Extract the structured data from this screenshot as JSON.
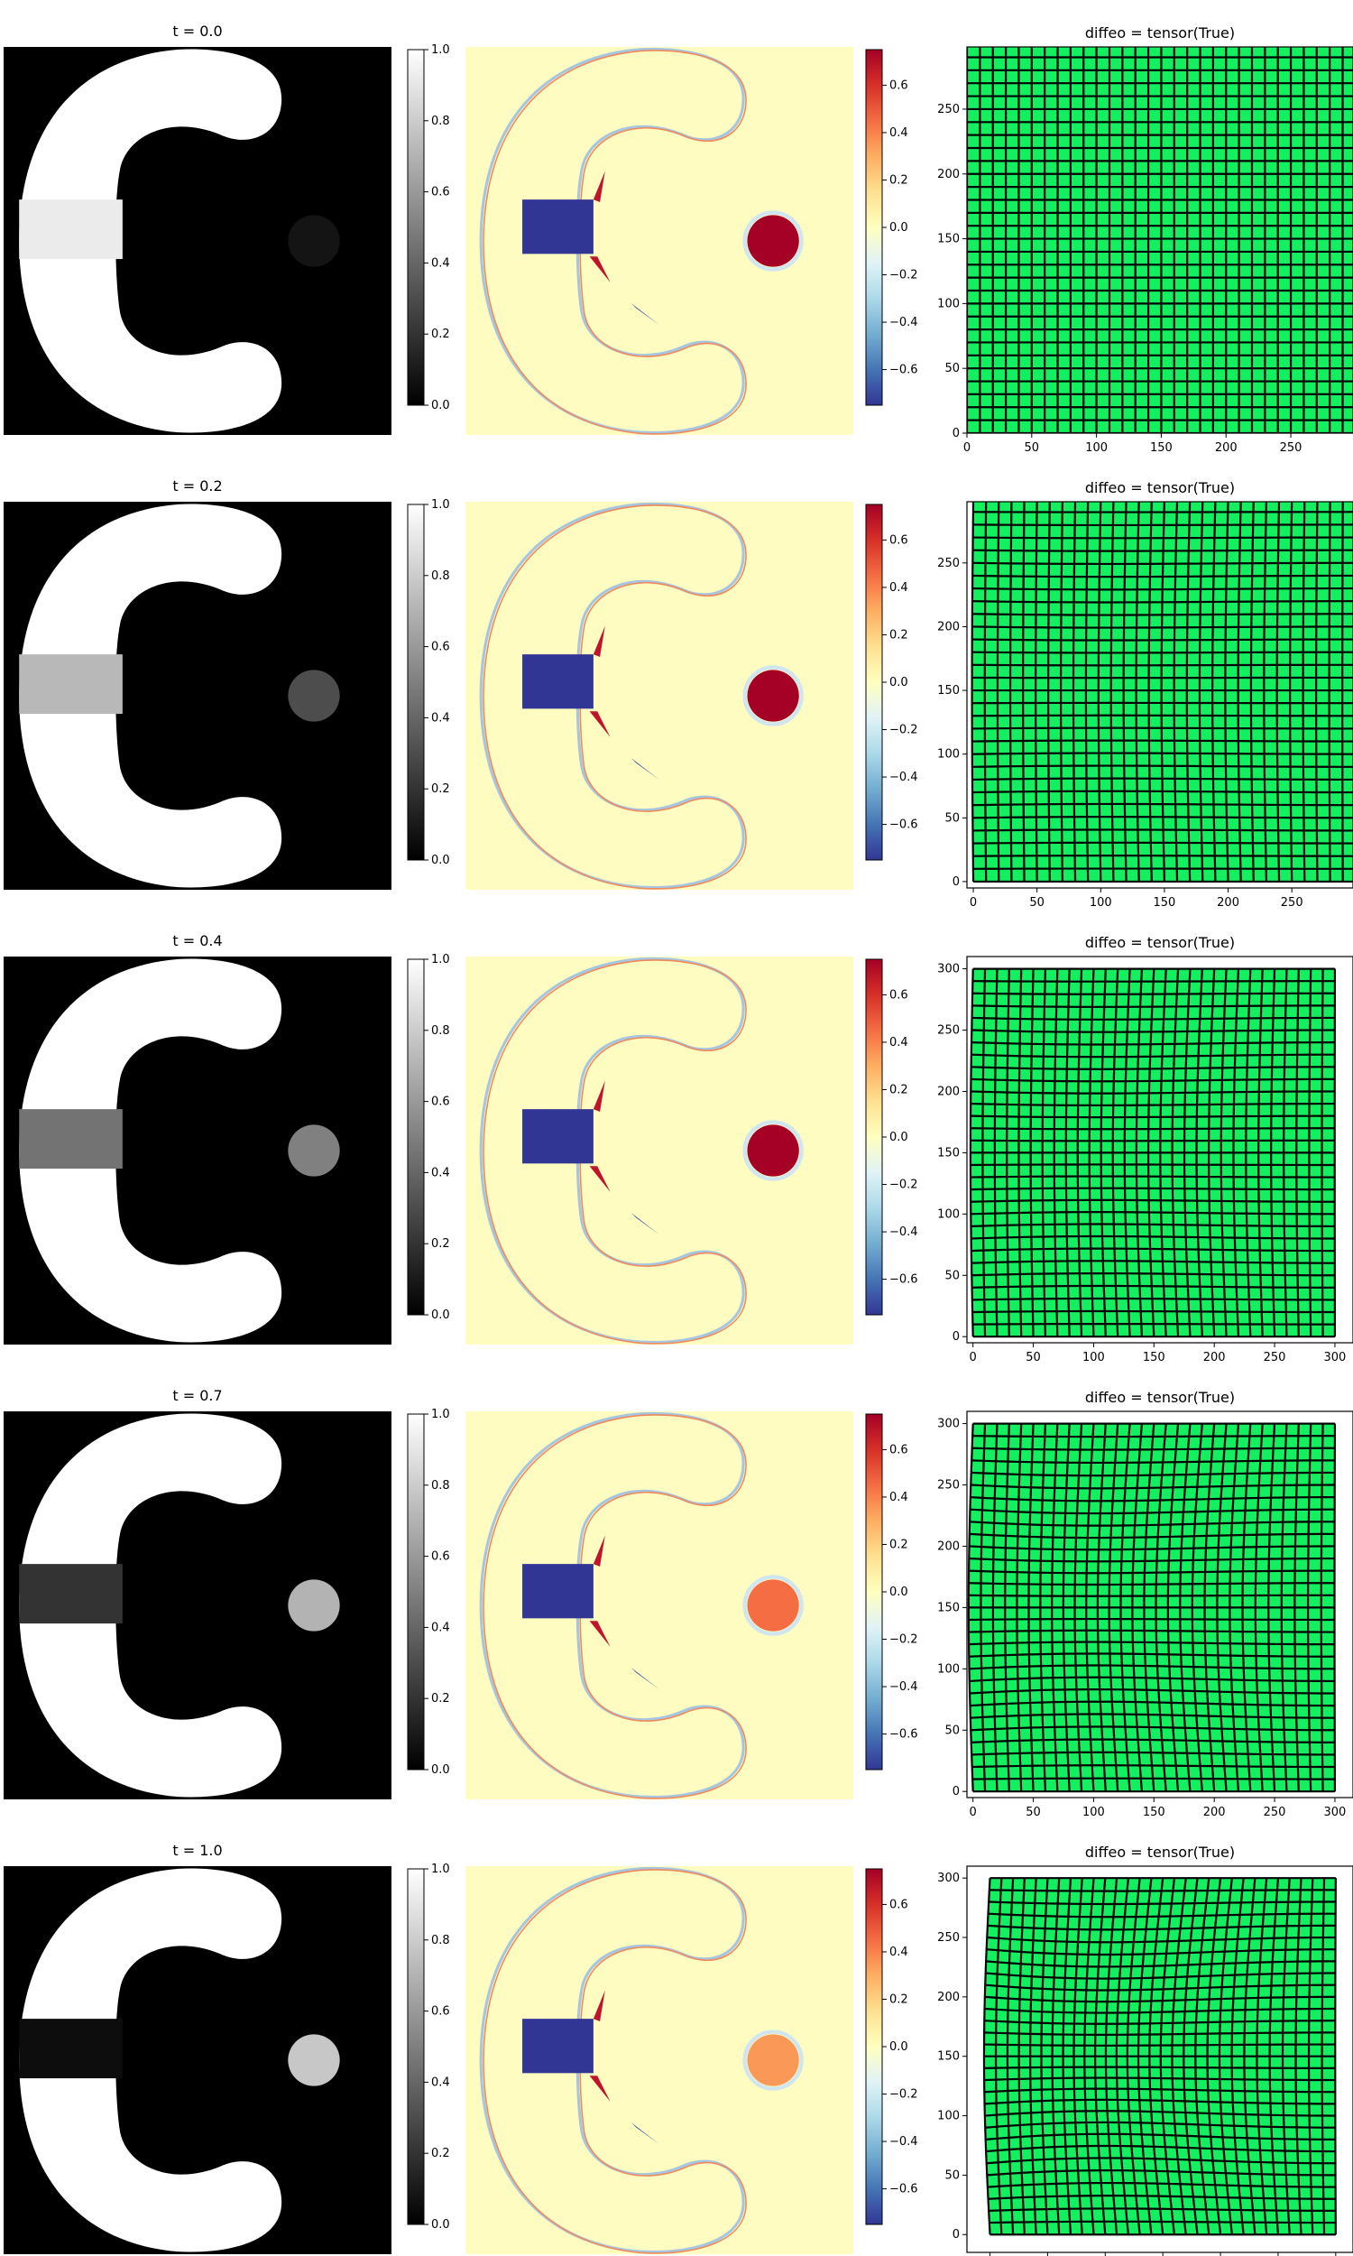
{
  "rows": [
    {
      "title": "t = 0.0",
      "grid_title": "diffeo = tensor(True)"
    },
    {
      "title": "t = 0.2",
      "grid_title": "diffeo = tensor(True)"
    },
    {
      "title": "t = 0.4",
      "grid_title": "diffeo = tensor(True)"
    },
    {
      "title": "t = 0.7",
      "grid_title": "diffeo = tensor(True)"
    },
    {
      "title": "t = 1.0",
      "grid_title": "diffeo = tensor(True)"
    }
  ],
  "chart_data": [
    {
      "type": "heatmap",
      "name": "image",
      "colormap": "gray",
      "colorbar_ticks": [
        "0.0",
        "0.2",
        "0.4",
        "0.6",
        "0.8",
        "1.0"
      ],
      "colorbar_range": [
        0,
        1
      ],
      "disk_intensity_by_row": [
        0.08,
        0.3,
        0.5,
        0.7,
        0.78
      ],
      "bar_intensity_by_row": [
        0.92,
        0.72,
        0.45,
        0.2,
        0.05
      ]
    },
    {
      "type": "heatmap",
      "name": "residual",
      "colormap": "RdYlBu_r",
      "colorbar_ticks": [
        "0.6",
        "0.4",
        "0.2",
        "0.0",
        "−0.2",
        "−0.4",
        "−0.6"
      ],
      "colorbar_range": [
        -0.75,
        0.75
      ],
      "disk_value_by_row": [
        0.75,
        0.75,
        0.75,
        0.45,
        0.35
      ]
    },
    {
      "type": "scatter",
      "name": "deformation-grid",
      "xticks_rows_0_1": [
        "0",
        "50",
        "100",
        "150",
        "200",
        "250"
      ],
      "xticks_rows_2_4": [
        "0",
        "50",
        "100",
        "150",
        "200",
        "250",
        "300"
      ],
      "yticks_rows_0_1": [
        "0",
        "50",
        "100",
        "150",
        "200",
        "250"
      ],
      "yticks_rows_2_4": [
        "0",
        "50",
        "100",
        "150",
        "200",
        "250",
        "300"
      ],
      "xlim_by_row": [
        [
          0,
          298
        ],
        [
          -5,
          298
        ],
        [
          -5,
          315
        ],
        [
          -5,
          315
        ],
        [
          -20,
          315
        ]
      ],
      "ylim_by_row": [
        [
          0,
          298
        ],
        [
          -5,
          298
        ],
        [
          -5,
          310
        ],
        [
          -5,
          310
        ],
        [
          -15,
          310
        ]
      ],
      "grid_range": [
        0,
        300
      ],
      "grid_lines": 30,
      "deformation_by_row": [
        0,
        0.2,
        0.4,
        0.7,
        1.0
      ],
      "grid_fill_color": "#13ef5f",
      "grid_line_color": "#000000"
    }
  ]
}
